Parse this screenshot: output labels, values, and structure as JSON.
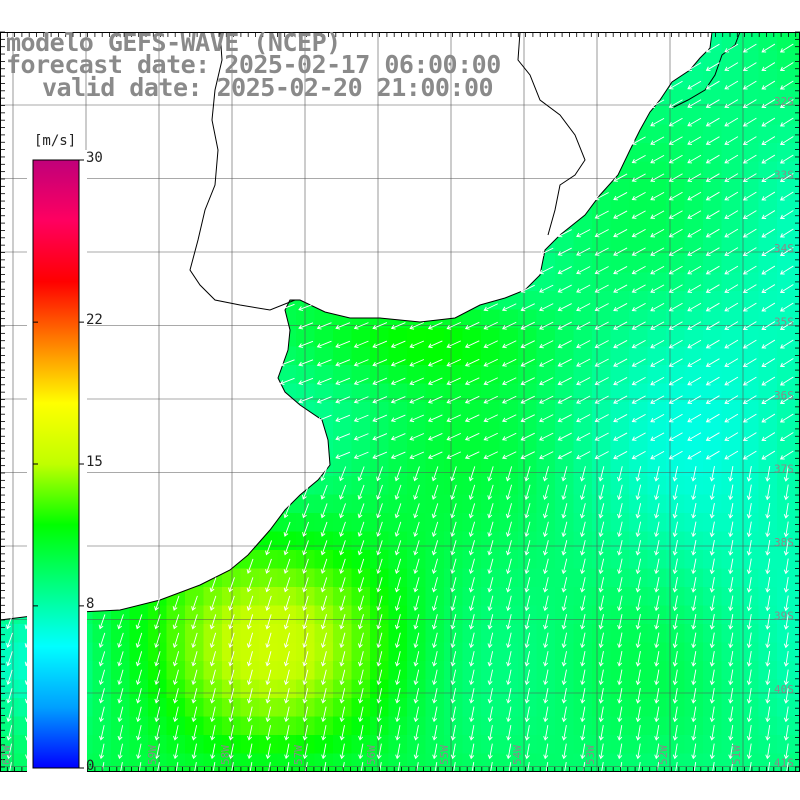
{
  "title": {
    "model": "modelo GEFS-WAVE (NCEP)",
    "forecast": "forecast date: 2025-02-17 06:00:00",
    "valid": "valid date: 2025-02-20 21:00:00"
  },
  "colorbar": {
    "unit": "[m/s]",
    "ticks": [
      {
        "label": "30",
        "value": 30
      },
      {
        "label": "22",
        "value": 22
      },
      {
        "label": "15",
        "value": 15
      },
      {
        "label": "8",
        "value": 8
      },
      {
        "label": "0",
        "value": 0
      }
    ],
    "range": [
      0,
      30
    ],
    "colors": [
      "#0000ff",
      "#00a0ff",
      "#00ffff",
      "#00ff80",
      "#00ff00",
      "#c0ff00",
      "#ffff00",
      "#ff8000",
      "#ff0000",
      "#ff0060",
      "#c0007a"
    ]
  },
  "map": {
    "lat_labels": [
      "32S",
      "33S",
      "34S",
      "35S",
      "36S",
      "37S",
      "38S",
      "39S",
      "40S",
      "41S"
    ],
    "lon_labels": [
      "61W",
      "60W",
      "59W",
      "58W",
      "57W",
      "56W",
      "55W",
      "54W",
      "53W",
      "52W",
      "51W",
      "50W"
    ],
    "land_color": "#ffffff",
    "coast_color": "#000000"
  }
}
